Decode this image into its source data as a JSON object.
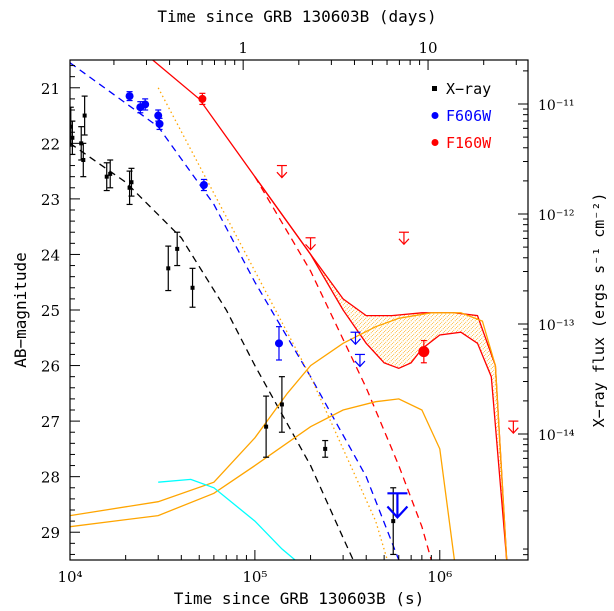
{
  "chart_data": {
    "type": "scatter",
    "xlabel": "Time since GRB 130603B (s)",
    "top_xlabel": "Time since GRB 130603B (days)",
    "ylabel": "AB−magnitude",
    "right_ylabel": "X−ray flux (ergs s⁻¹ cm⁻²)",
    "x_scale": "log",
    "xlim": [
      10000,
      3000000
    ],
    "ylim": [
      29.5,
      20.5
    ],
    "x_ticks": [
      "10⁴",
      "10⁵",
      "10⁶"
    ],
    "top_ticks": [
      "1",
      "10"
    ],
    "y_ticks": [
      "21",
      "22",
      "23",
      "24",
      "25",
      "26",
      "27",
      "28",
      "29"
    ],
    "right_ticks": [
      "10⁻¹¹",
      "10⁻¹²",
      "10⁻¹³",
      "10⁻¹⁴"
    ],
    "legend_position": "top-right",
    "legend": [
      {
        "label": "X−ray",
        "color": "#000000",
        "marker": "square"
      },
      {
        "label": "F606W",
        "color": "#0000ff",
        "marker": "circle"
      },
      {
        "label": "F160W",
        "color": "#ff0000",
        "marker": "circle"
      }
    ],
    "series": [
      {
        "name": "X−ray",
        "color": "#000000",
        "marker": "square",
        "points": [
          [
            10100,
            21.7,
            0.35
          ],
          [
            10300,
            21.9,
            0.3
          ],
          [
            11500,
            22.0,
            0.3
          ],
          [
            11800,
            22.3,
            0.3
          ],
          [
            12000,
            21.5,
            0.35
          ],
          [
            15800,
            22.6,
            0.25
          ],
          [
            16500,
            22.55,
            0.25
          ],
          [
            21000,
            22.8,
            0.3
          ],
          [
            21500,
            22.7,
            0.25
          ],
          [
            34000,
            24.25,
            0.4
          ],
          [
            38000,
            23.9,
            0.3
          ],
          [
            46000,
            24.6,
            0.35
          ],
          [
            115000,
            27.1,
            0.55
          ],
          [
            140000,
            26.7,
            0.5
          ],
          [
            240000,
            27.5,
            0.15
          ],
          [
            560000,
            28.8,
            0.6
          ]
        ]
      },
      {
        "name": "F606W",
        "color": "#0000ff",
        "marker": "circle",
        "points": [
          [
            21000,
            21.15,
            0.08
          ],
          [
            24000,
            21.35,
            0.1
          ],
          [
            25500,
            21.3,
            0.1
          ],
          [
            30000,
            21.5,
            0.1
          ],
          [
            30500,
            21.65,
            0.1
          ],
          [
            53000,
            22.75,
            0.1
          ],
          [
            135000,
            25.6,
            0.3
          ]
        ]
      },
      {
        "name": "F160W",
        "color": "#ff0000",
        "marker": "circle",
        "points": [
          [
            52000,
            21.2,
            0.1
          ],
          [
            820000,
            25.75,
            0.2
          ]
        ]
      }
    ],
    "upper_limits": [
      {
        "x": 140000,
        "y": 22.4,
        "color": "#ff0000"
      },
      {
        "x": 200000,
        "y": 23.7,
        "color": "#ff0000"
      },
      {
        "x": 640000,
        "y": 23.6,
        "color": "#ff0000"
      },
      {
        "x": 2500000,
        "y": 27.0,
        "color": "#ff0000"
      },
      {
        "x": 350000,
        "y": 25.4,
        "color": "#0000ff"
      },
      {
        "x": 370000,
        "y": 25.8,
        "color": "#0000ff"
      },
      {
        "x": 590000,
        "y": 28.3,
        "color": "#0000ff"
      }
    ],
    "model_curves": [
      {
        "color": "#ff0000",
        "dash": "solid",
        "points": [
          [
            28000,
            20.5
          ],
          [
            50000,
            21.2
          ],
          [
            100000,
            22.6
          ],
          [
            200000,
            24.0
          ],
          [
            300000,
            24.8
          ],
          [
            400000,
            25.1
          ],
          [
            550000,
            25.1
          ],
          [
            800000,
            25.05
          ],
          [
            1200000,
            25.05
          ],
          [
            1600000,
            25.1
          ],
          [
            2000000,
            26.0
          ],
          [
            2300000,
            29.5
          ]
        ]
      },
      {
        "color": "#ff0000",
        "dash": "solid",
        "points": [
          [
            100000,
            22.6
          ],
          [
            200000,
            24.0
          ],
          [
            300000,
            25.0
          ],
          [
            400000,
            25.6
          ],
          [
            500000,
            25.95
          ],
          [
            600000,
            26.05
          ],
          [
            700000,
            25.95
          ],
          [
            800000,
            25.7
          ],
          [
            1000000,
            25.45
          ],
          [
            1300000,
            25.4
          ],
          [
            1600000,
            25.6
          ],
          [
            1900000,
            26.2
          ],
          [
            2300000,
            29.5
          ]
        ]
      },
      {
        "color": "#ff0000",
        "dash": "dashed",
        "points": [
          [
            100000,
            22.6
          ],
          [
            200000,
            24.3
          ],
          [
            400000,
            26.4
          ],
          [
            600000,
            27.8
          ],
          [
            800000,
            28.9
          ],
          [
            900000,
            29.5
          ]
        ]
      },
      {
        "color": "#0000ff",
        "dash": "dashed",
        "points": [
          [
            10000,
            20.55
          ],
          [
            30000,
            21.7
          ],
          [
            60000,
            23.1
          ],
          [
            100000,
            24.5
          ],
          [
            200000,
            26.2
          ],
          [
            400000,
            28.0
          ],
          [
            600000,
            29.5
          ]
        ]
      },
      {
        "color": "#000000",
        "dash": "dashed",
        "points": [
          [
            10000,
            22.0
          ],
          [
            20000,
            22.7
          ],
          [
            40000,
            23.7
          ],
          [
            70000,
            25.0
          ],
          [
            100000,
            26.0
          ],
          [
            200000,
            27.8
          ],
          [
            300000,
            29.1
          ],
          [
            340000,
            29.5
          ]
        ]
      },
      {
        "color": "#ffa500",
        "dash": "dotted",
        "points": [
          [
            30000,
            21.0
          ],
          [
            60000,
            22.9
          ],
          [
            100000,
            24.3
          ],
          [
            200000,
            26.2
          ],
          [
            300000,
            27.5
          ],
          [
            450000,
            28.8
          ],
          [
            520000,
            29.5
          ]
        ]
      },
      {
        "color": "#ffa500",
        "dash": "solid",
        "points": [
          [
            10000,
            28.7
          ],
          [
            30000,
            28.45
          ],
          [
            60000,
            28.1
          ],
          [
            100000,
            27.3
          ],
          [
            150000,
            26.5
          ],
          [
            200000,
            26.0
          ],
          [
            300000,
            25.6
          ],
          [
            450000,
            25.3
          ],
          [
            600000,
            25.15
          ],
          [
            900000,
            25.05
          ],
          [
            1300000,
            25.05
          ],
          [
            1700000,
            25.2
          ],
          [
            2000000,
            26.0
          ],
          [
            2300000,
            29.5
          ]
        ]
      },
      {
        "color": "#ffa500",
        "dash": "solid",
        "points": [
          [
            10000,
            28.9
          ],
          [
            30000,
            28.7
          ],
          [
            60000,
            28.3
          ],
          [
            100000,
            27.8
          ],
          [
            200000,
            27.1
          ],
          [
            300000,
            26.8
          ],
          [
            450000,
            26.65
          ],
          [
            600000,
            26.6
          ],
          [
            800000,
            26.8
          ],
          [
            1000000,
            27.5
          ],
          [
            1200000,
            29.5
          ]
        ]
      },
      {
        "color": "#00ffff",
        "dash": "solid",
        "points": [
          [
            30000,
            28.1
          ],
          [
            45000,
            28.05
          ],
          [
            60000,
            28.2
          ],
          [
            100000,
            28.8
          ],
          [
            140000,
            29.3
          ],
          [
            165000,
            29.5
          ]
        ]
      }
    ]
  }
}
